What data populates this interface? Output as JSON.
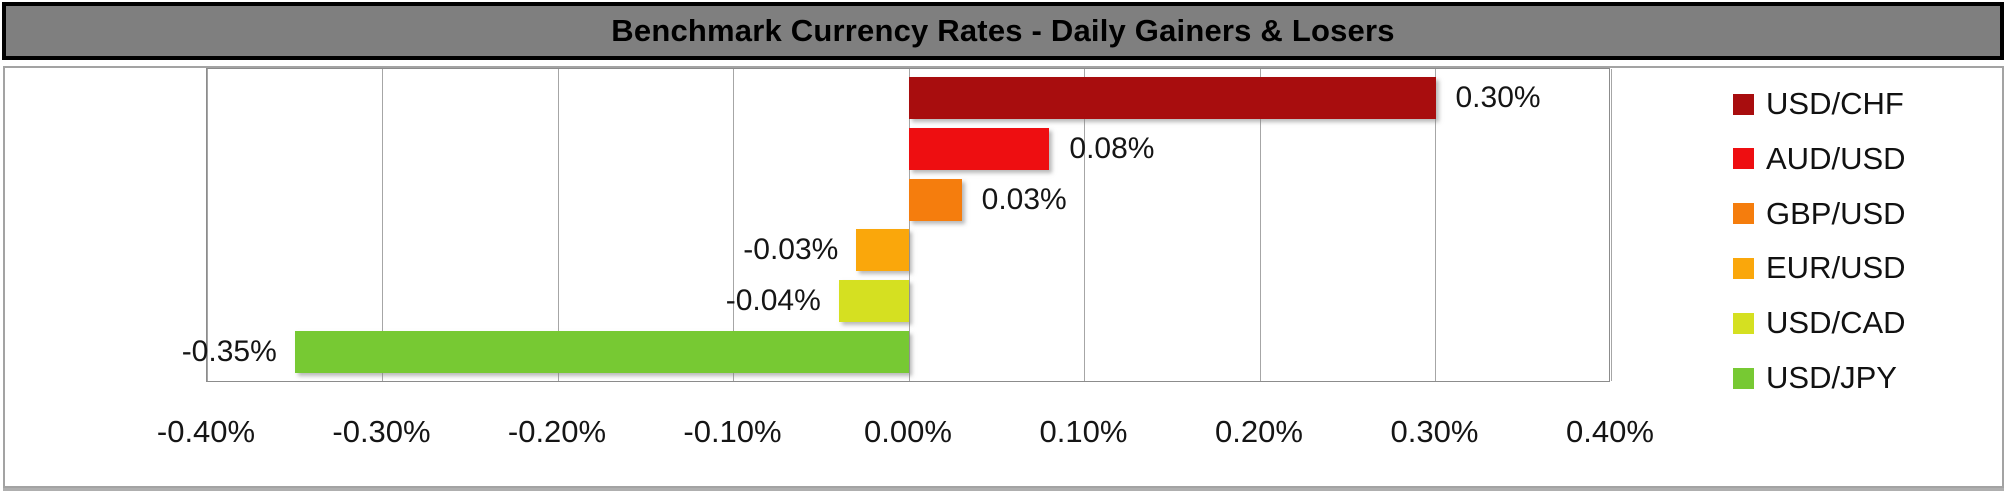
{
  "title": "Benchmark Currency Rates - Daily Gainers & Losers",
  "chart_data": {
    "type": "bar",
    "orientation": "horizontal",
    "title": "Benchmark Currency Rates - Daily Gainers & Losers",
    "categories": [
      "USD/CHF",
      "AUD/USD",
      "GBP/USD",
      "EUR/USD",
      "USD/CAD",
      "USD/JPY"
    ],
    "values": [
      0.3,
      0.08,
      0.03,
      -0.03,
      -0.04,
      -0.35
    ],
    "value_labels": [
      "0.30%",
      "0.08%",
      "0.03%",
      "-0.03%",
      "-0.04%",
      "-0.35%"
    ],
    "bar_colors": [
      "#A80D0E",
      "#EE0E11",
      "#F57D0D",
      "#FAA70B",
      "#D5E021",
      "#77C933"
    ],
    "x_ticks": [
      -0.4,
      -0.3,
      -0.2,
      -0.1,
      0.0,
      0.1,
      0.2,
      0.3,
      0.4
    ],
    "x_tick_labels": [
      "-0.40%",
      "-0.30%",
      "-0.20%",
      "-0.10%",
      "0.00%",
      "0.10%",
      "0.20%",
      "0.30%",
      "0.40%"
    ],
    "xlim": [
      -0.4,
      0.4
    ],
    "grid": true,
    "legend_position": "right",
    "legend": [
      {
        "label": "USD/CHF",
        "color": "#A80D0E"
      },
      {
        "label": "AUD/USD",
        "color": "#EE0E11"
      },
      {
        "label": "GBP/USD",
        "color": "#F57D0D"
      },
      {
        "label": "EUR/USD",
        "color": "#FAA70B"
      },
      {
        "label": "USD/CAD",
        "color": "#D5E021"
      },
      {
        "label": "USD/JPY",
        "color": "#77C933"
      }
    ]
  },
  "colors": {
    "title_bar_bg": "#7F7F7F",
    "title_bar_border": "#000000",
    "title_text": "#000000",
    "chart_border": "#A3A3A3",
    "gridline": "#A6A6A6",
    "label_text": "#151515"
  }
}
